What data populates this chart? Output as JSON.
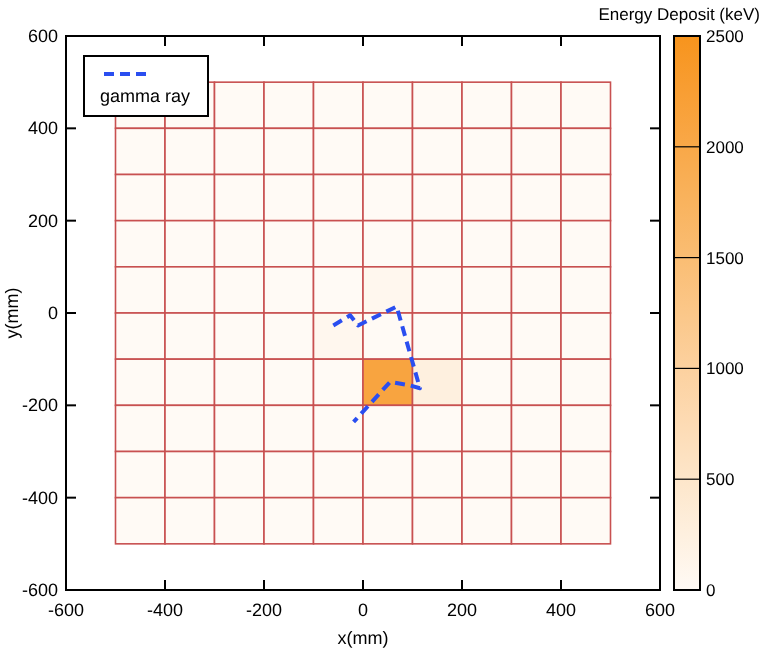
{
  "chart_data": {
    "type": "heatmap",
    "xlabel": "x(mm)",
    "ylabel": "y(mm)",
    "clabel": "Energy Deposit (keV)",
    "x": [
      -450,
      -350,
      -250,
      -150,
      -50,
      50,
      150,
      250,
      350,
      450
    ],
    "y": [
      450,
      350,
      250,
      150,
      50,
      -50,
      -150,
      -250,
      -350,
      -450
    ],
    "cells": [
      [
        0,
        0,
        0,
        0,
        0,
        0,
        0,
        0,
        0,
        0
      ],
      [
        0,
        0,
        0,
        0,
        0,
        0,
        0,
        0,
        0,
        0
      ],
      [
        0,
        0,
        0,
        0,
        0,
        0,
        0,
        0,
        0,
        0
      ],
      [
        0,
        0,
        0,
        0,
        0,
        0,
        0,
        0,
        0,
        0
      ],
      [
        0,
        0,
        0,
        0,
        0,
        80,
        0,
        0,
        0,
        0
      ],
      [
        0,
        0,
        0,
        0,
        80,
        0,
        0,
        0,
        0,
        0
      ],
      [
        0,
        0,
        0,
        0,
        0,
        2100,
        250,
        0,
        0,
        0
      ],
      [
        0,
        0,
        0,
        0,
        0,
        0,
        0,
        0,
        0,
        0
      ],
      [
        0,
        0,
        0,
        0,
        0,
        0,
        0,
        0,
        0,
        0
      ],
      [
        0,
        0,
        0,
        0,
        0,
        0,
        0,
        0,
        0,
        0
      ]
    ],
    "clim": [
      0,
      2500
    ],
    "cticks": [
      0,
      500,
      1000,
      1500,
      2000,
      2500
    ],
    "colors": [
      "#fffaf5",
      "#f7941d"
    ],
    "xlim": [
      -600,
      600
    ],
    "ylim": [
      -600,
      600
    ],
    "xticks": [
      -600,
      -400,
      -200,
      0,
      200,
      400,
      600
    ],
    "yticks": [
      -600,
      -400,
      -200,
      0,
      200,
      400,
      600
    ],
    "series": [
      {
        "name": "gamma ray",
        "type": "line",
        "color": "#2a4ef0",
        "line_style": "dashed",
        "x": [
          -60,
          -26,
          -10,
          68,
          115,
          95,
          55,
          -19
        ],
        "values": [
          -27,
          -5,
          -27,
          14,
          -163,
          -157,
          -149,
          -236
        ]
      }
    ],
    "legend": "top left"
  }
}
